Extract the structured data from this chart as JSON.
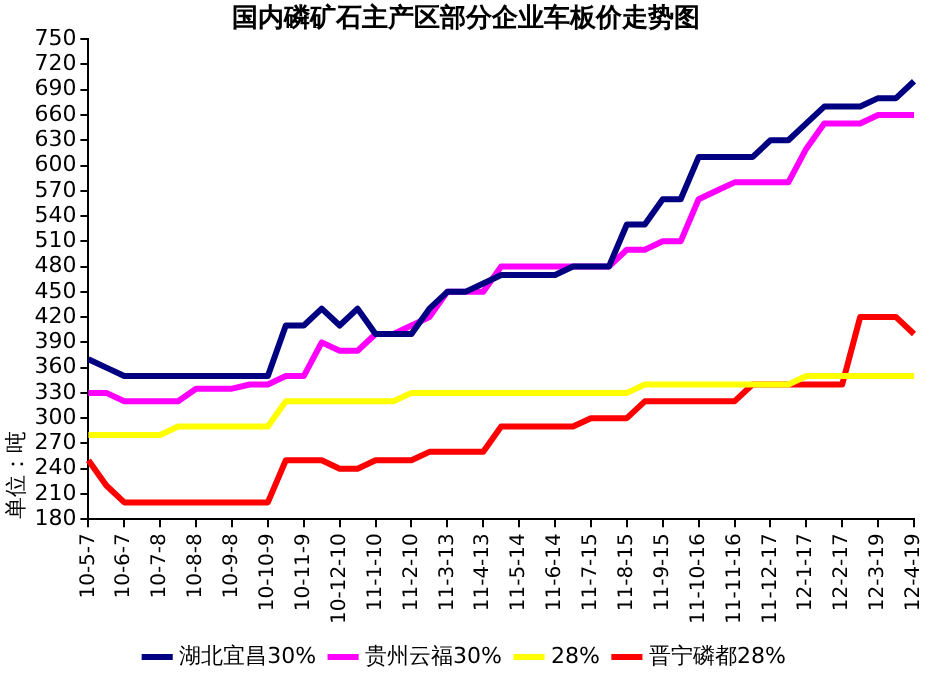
{
  "chart_data": {
    "type": "line",
    "title": "国内磷矿石主产区部分企业车板价走势图",
    "ylabel": "单位：吨",
    "categories": [
      "10-5-7",
      null,
      "10-6-7",
      null,
      "10-7-8",
      null,
      "10-8-8",
      null,
      "10-9-8",
      null,
      "10-10-9",
      null,
      "10-11-9",
      null,
      "10-12-10",
      null,
      "11-1-10",
      null,
      "11-2-10",
      null,
      "11-3-13",
      null,
      "11-4-13",
      null,
      "11-5-14",
      null,
      "11-6-14",
      null,
      "11-7-15",
      null,
      "11-8-15",
      null,
      "11-9-15",
      null,
      "11-10-16",
      null,
      "11-11-16",
      null,
      "11-12-17",
      null,
      "12-1-17",
      null,
      "12-2-17",
      null,
      "12-3-19",
      null,
      "12-4-19"
    ],
    "series": [
      {
        "name": "湖北宜昌30%",
        "color": "#000080",
        "values": [
          370,
          360,
          350,
          350,
          350,
          350,
          350,
          350,
          350,
          350,
          350,
          410,
          410,
          430,
          410,
          430,
          400,
          400,
          400,
          430,
          450,
          450,
          460,
          470,
          470,
          470,
          470,
          480,
          480,
          480,
          530,
          530,
          560,
          560,
          610,
          610,
          610,
          610,
          630,
          630,
          650,
          670,
          670,
          670,
          680,
          680,
          700
        ]
      },
      {
        "name": "贵州云福30%",
        "color": "#ff00ff",
        "values": [
          330,
          330,
          320,
          320,
          320,
          320,
          335,
          335,
          335,
          340,
          340,
          350,
          350,
          390,
          380,
          380,
          400,
          400,
          410,
          420,
          450,
          450,
          450,
          480,
          480,
          480,
          480,
          480,
          480,
          480,
          500,
          500,
          510,
          510,
          560,
          570,
          580,
          580,
          580,
          580,
          620,
          650,
          650,
          650,
          660,
          660,
          660
        ]
      },
      {
        "name": "28%",
        "color": "#ffff00",
        "values": [
          280,
          280,
          280,
          280,
          280,
          290,
          290,
          290,
          290,
          290,
          290,
          320,
          320,
          320,
          320,
          320,
          320,
          320,
          330,
          330,
          330,
          330,
          330,
          330,
          330,
          330,
          330,
          330,
          330,
          330,
          330,
          340,
          340,
          340,
          340,
          340,
          340,
          340,
          340,
          340,
          350,
          350,
          350,
          350,
          350,
          350,
          350
        ]
      },
      {
        "name": "晋宁磷都28%",
        "color": "#ff0000",
        "values": [
          250,
          220,
          200,
          200,
          200,
          200,
          200,
          200,
          200,
          200,
          200,
          250,
          250,
          250,
          240,
          240,
          250,
          250,
          250,
          260,
          260,
          260,
          260,
          290,
          290,
          290,
          290,
          290,
          300,
          300,
          300,
          320,
          320,
          320,
          320,
          320,
          320,
          340,
          340,
          340,
          340,
          340,
          340,
          420,
          420,
          420,
          400
        ]
      }
    ],
    "ylim": [
      180,
      750
    ],
    "yticks": [
      180,
      210,
      240,
      270,
      300,
      330,
      360,
      390,
      420,
      450,
      480,
      510,
      540,
      570,
      600,
      630,
      660,
      690,
      720,
      750
    ],
    "grid": false,
    "legend": "bottom",
    "marker": "none",
    "line_style": "solid"
  }
}
